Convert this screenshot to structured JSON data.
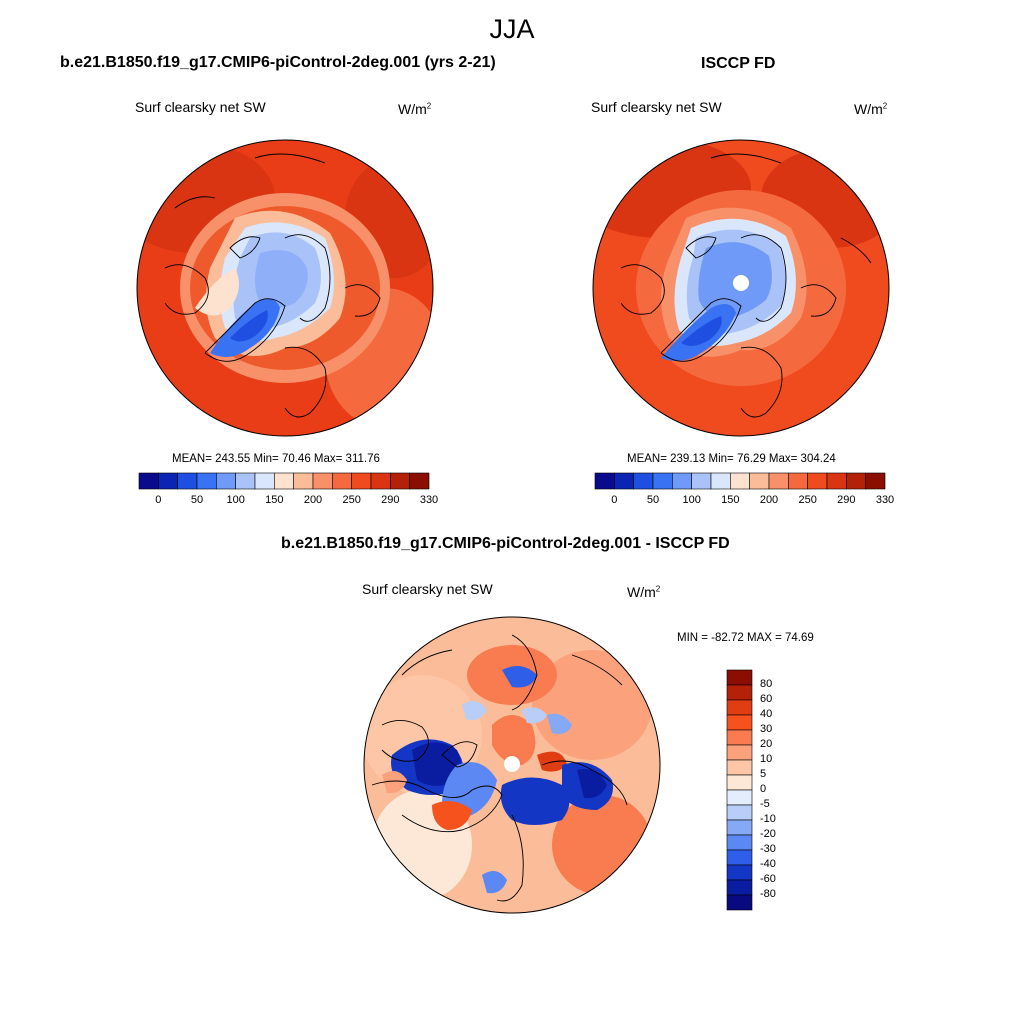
{
  "figure": {
    "title": "JJA",
    "panels": [
      {
        "id": "model",
        "title": "b.e21.B1850.f19_g17.CMIP6-piControl-2deg.001 (yrs 2-21)",
        "variable": "Surf clearsky net SW",
        "units": "W/m",
        "units_sup": "2",
        "stats": "MEAN= 243.55  Min=  70.46  Max= 311.76"
      },
      {
        "id": "obs",
        "title": "ISCCP FD",
        "variable": "Surf clearsky net SW",
        "units": "W/m",
        "units_sup": "2",
        "stats": "MEAN= 239.13  Min=  76.29  Max= 304.24"
      },
      {
        "id": "diff",
        "title": "b.e21.B1850.f19_g17.CMIP6-piControl-2deg.001 - ISCCP FD",
        "variable": "Surf clearsky net SW",
        "units": "W/m",
        "units_sup": "2",
        "stats": "MIN = -82.72 MAX =  74.69"
      }
    ],
    "colorbar_abs": {
      "labels": [
        "0",
        "50",
        "100",
        "150",
        "200",
        "250",
        "290",
        "330"
      ],
      "colors": [
        "#0a0a8c",
        "#0b24b4",
        "#1f4fe0",
        "#3a72f4",
        "#6f9af7",
        "#a9c3f9",
        "#d9e6fb",
        "#fde3cf",
        "#fbbd99",
        "#f8906a",
        "#f46a3e",
        "#ef4b1f",
        "#d93512",
        "#b32108",
        "#8a0f02"
      ]
    },
    "colorbar_diff": {
      "labels": [
        "80",
        "60",
        "40",
        "30",
        "20",
        "10",
        "5",
        "0",
        "-5",
        "-10",
        "-20",
        "-30",
        "-40",
        "-60",
        "-80"
      ],
      "colors": [
        "#8a0f02",
        "#b32108",
        "#e03d12",
        "#f5521e",
        "#f87c4f",
        "#fba27c",
        "#fdc6a6",
        "#fde8d8",
        "#e3edfb",
        "#b8cef8",
        "#85a9f5",
        "#5b88f2",
        "#2f5fe8",
        "#1436c5",
        "#0a1da0",
        "#0a0a80"
      ]
    },
    "diff_overlay": {
      "pole_hole_color": "#ffffff",
      "land_line_color": "#000000"
    }
  }
}
